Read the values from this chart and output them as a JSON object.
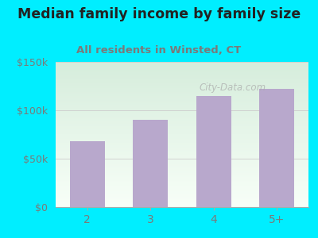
{
  "categories": [
    "2",
    "3",
    "4",
    "5+"
  ],
  "values": [
    68000,
    90000,
    115000,
    122000
  ],
  "bar_color": "#b8a8cc",
  "title": "Median family income by family size",
  "subtitle": "All residents in Winsted, CT",
  "title_color": "#222222",
  "subtitle_color": "#7a7a7a",
  "ytick_label_color": "#7a7a7a",
  "xtick_label_color": "#7a7a7a",
  "bg_outer": "#00eeff",
  "bg_inner_top": "#d6eddc",
  "bg_inner_bottom": "#f8fff8",
  "ylim": [
    0,
    150000
  ],
  "yticks": [
    0,
    50000,
    100000,
    150000
  ],
  "ytick_labels": [
    "$0",
    "$50k",
    "$100k",
    "$150k"
  ],
  "watermark": "City-Data.com",
  "title_fontsize": 12.5,
  "subtitle_fontsize": 9.5
}
